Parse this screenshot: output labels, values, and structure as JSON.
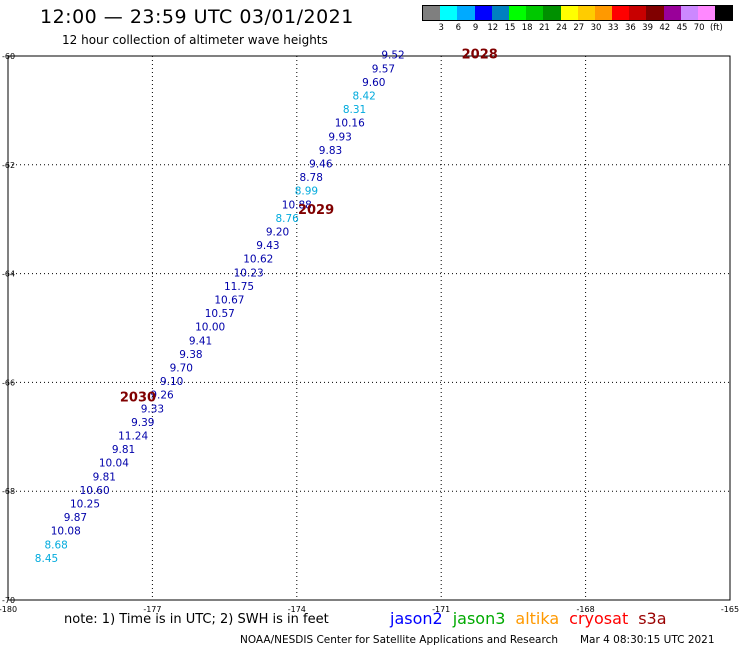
{
  "title": "12:00 — 23:59 UTC 03/01/2021",
  "subtitle": "12 hour collection of altimeter wave heights",
  "legend": {
    "colors": [
      "#7f7f7f",
      "#00ffff",
      "#00aaff",
      "#0000ff",
      "#0080c0",
      "#00ff00",
      "#00c800",
      "#009000",
      "#ffff00",
      "#ffcc00",
      "#ff9900",
      "#ff0000",
      "#c80000",
      "#800000",
      "#990099",
      "#cc88ff",
      "#ff88ff",
      "#000000"
    ],
    "labels": [
      "3",
      "6",
      "9",
      "12",
      "15",
      "18",
      "21",
      "24",
      "27",
      "30",
      "33",
      "36",
      "39",
      "42",
      "45",
      "70",
      "(ft)"
    ]
  },
  "axes": {
    "x_ticks": [
      "-180",
      "-177",
      "-174",
      "-171",
      "-168",
      "-165"
    ],
    "y_ticks": [
      "-60",
      "-62",
      "-64",
      "-66",
      "-68",
      "-70"
    ]
  },
  "revolutions": [
    {
      "label": "2028",
      "lon": -170.2,
      "lat": -60.05,
      "color": "#800000"
    },
    {
      "label": "2029",
      "lon": -173.6,
      "lat": -62.9,
      "color": "#800000"
    },
    {
      "label": "2030",
      "lon": -177.3,
      "lat": -66.35,
      "color": "#800000"
    }
  ],
  "wave_heights": [
    {
      "v": "9.52",
      "lon": -172.0,
      "lat": -60.05,
      "c": "#0000aa"
    },
    {
      "v": "9.57",
      "lon": -172.2,
      "lat": -60.3,
      "c": "#0000aa"
    },
    {
      "v": "9.60",
      "lon": -172.4,
      "lat": -60.55,
      "c": "#0000aa"
    },
    {
      "v": "8.42",
      "lon": -172.6,
      "lat": -60.8,
      "c": "#00aadd"
    },
    {
      "v": "8.31",
      "lon": -172.8,
      "lat": -61.05,
      "c": "#00aadd"
    },
    {
      "v": "10.16",
      "lon": -172.9,
      "lat": -61.3,
      "c": "#0000aa"
    },
    {
      "v": "9.93",
      "lon": -173.1,
      "lat": -61.55,
      "c": "#0000aa"
    },
    {
      "v": "9.83",
      "lon": -173.3,
      "lat": -61.8,
      "c": "#0000aa"
    },
    {
      "v": "9.46",
      "lon": -173.5,
      "lat": -62.05,
      "c": "#0000aa"
    },
    {
      "v": "8.78",
      "lon": -173.7,
      "lat": -62.3,
      "c": "#0000aa"
    },
    {
      "v": "8.99",
      "lon": -173.8,
      "lat": -62.55,
      "c": "#00aadd"
    },
    {
      "v": "10.88",
      "lon": -174.0,
      "lat": -62.8,
      "c": "#0000aa"
    },
    {
      "v": "8.76",
      "lon": -174.2,
      "lat": -63.05,
      "c": "#00aadd"
    },
    {
      "v": "9.20",
      "lon": -174.4,
      "lat": -63.3,
      "c": "#0000aa"
    },
    {
      "v": "9.43",
      "lon": -174.6,
      "lat": -63.55,
      "c": "#0000aa"
    },
    {
      "v": "10.62",
      "lon": -174.8,
      "lat": -63.8,
      "c": "#0000aa"
    },
    {
      "v": "10.23",
      "lon": -175.0,
      "lat": -64.05,
      "c": "#0000aa"
    },
    {
      "v": "11.75",
      "lon": -175.2,
      "lat": -64.3,
      "c": "#0000aa"
    },
    {
      "v": "10.67",
      "lon": -175.4,
      "lat": -64.55,
      "c": "#0000aa"
    },
    {
      "v": "10.57",
      "lon": -175.6,
      "lat": -64.8,
      "c": "#0000aa"
    },
    {
      "v": "10.00",
      "lon": -175.8,
      "lat": -65.05,
      "c": "#0000aa"
    },
    {
      "v": "9.41",
      "lon": -176.0,
      "lat": -65.3,
      "c": "#0000aa"
    },
    {
      "v": "9.38",
      "lon": -176.2,
      "lat": -65.55,
      "c": "#0000aa"
    },
    {
      "v": "9.70",
      "lon": -176.4,
      "lat": -65.8,
      "c": "#0000aa"
    },
    {
      "v": "9.10",
      "lon": -176.6,
      "lat": -66.05,
      "c": "#0000aa"
    },
    {
      "v": "9.26",
      "lon": -176.8,
      "lat": -66.3,
      "c": "#0000aa"
    },
    {
      "v": "9.33",
      "lon": -177.0,
      "lat": -66.55,
      "c": "#0000aa"
    },
    {
      "v": "9.39",
      "lon": -177.2,
      "lat": -66.8,
      "c": "#0000aa"
    },
    {
      "v": "11.24",
      "lon": -177.4,
      "lat": -67.05,
      "c": "#0000aa"
    },
    {
      "v": "9.81",
      "lon": -177.6,
      "lat": -67.3,
      "c": "#0000aa"
    },
    {
      "v": "10.04",
      "lon": -177.8,
      "lat": -67.55,
      "c": "#0000aa"
    },
    {
      "v": "9.81",
      "lon": -178.0,
      "lat": -67.8,
      "c": "#0000aa"
    },
    {
      "v": "10.60",
      "lon": -178.2,
      "lat": -68.05,
      "c": "#0000aa"
    },
    {
      "v": "10.25",
      "lon": -178.4,
      "lat": -68.3,
      "c": "#0000aa"
    },
    {
      "v": "9.87",
      "lon": -178.6,
      "lat": -68.55,
      "c": "#0000aa"
    },
    {
      "v": "10.08",
      "lon": -178.8,
      "lat": -68.8,
      "c": "#0000aa"
    },
    {
      "v": "8.68",
      "lon": -179.0,
      "lat": -69.05,
      "c": "#00aadd"
    },
    {
      "v": "8.45",
      "lon": -179.2,
      "lat": -69.3,
      "c": "#00aadd"
    }
  ],
  "note": "note: 1) Time is in UTC; 2) SWH is in feet",
  "satellites": [
    {
      "name": "jason2",
      "color": "#0000ff"
    },
    {
      "name": "jason3",
      "color": "#00aa00"
    },
    {
      "name": "altika",
      "color": "#ff9900"
    },
    {
      "name": "cryosat",
      "color": "#ff0000"
    },
    {
      "name": "s3a",
      "color": "#990000"
    }
  ],
  "credit": "NOAA/NESDIS Center for Satellite Applications and Research",
  "timestamp": "Mar  4 08:30:15 UTC 2021"
}
